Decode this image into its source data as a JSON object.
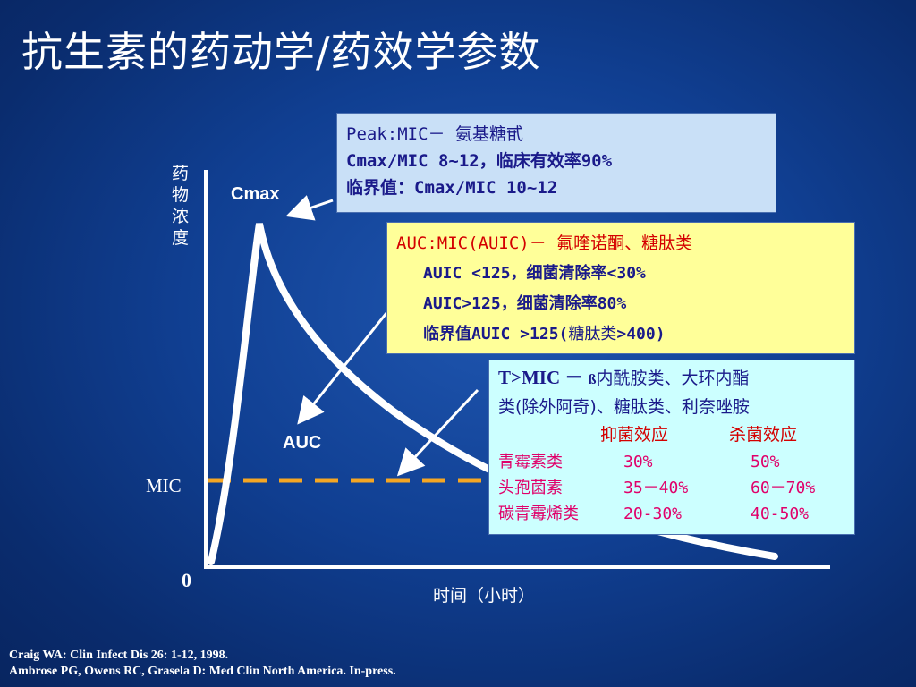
{
  "title": "抗生素的药动学/药效学参数",
  "chart": {
    "y_axis_label": "药物浓度",
    "x_axis_label": "时间（小时）",
    "origin_label": "0",
    "cmax_label": "Cmax",
    "auc_label": "AUC",
    "mic_label": "MIC",
    "colors": {
      "curve": "#ffffff",
      "axis": "#ffffff",
      "mic_line": "#f5a623"
    }
  },
  "peak_box": {
    "line1": "Peak:MIC－ 氨基糖甙",
    "line2": "Cmax/MIC 8~12，临床有效率90%",
    "line3": "临界值：Cmax/MIC 10~12"
  },
  "auc_box": {
    "line1": "AUC:MIC(AUIC)－ 氟喹诺酮、糖肽类",
    "line2": "AUIC <125，细菌清除率<30%",
    "line3": "AUIC>125，细菌清除率80%",
    "line4_prefix": "临界值AUIC >125(",
    "line4_mid": "糖肽类",
    "line4_suffix": ">400)"
  },
  "tmic_box": {
    "line1_prefix": "T>MIC － ",
    "line1_beta": "ß",
    "line1_text": "内酰胺类、大环内酯",
    "line2": "类(除外阿奇)、糖肽类、利奈唑胺",
    "header_col2": "抑菌效应",
    "header_col3": "杀菌效应",
    "rows": [
      {
        "drug": "青霉素类",
        "bacteriostatic": "30%",
        "bactericidal": "50%"
      },
      {
        "drug": "头孢菌素",
        "bacteriostatic": "35－40%",
        "bactericidal": "60－70%"
      },
      {
        "drug": "碳青霉烯类",
        "bacteriostatic": "20-30%",
        "bactericidal": "40-50%"
      }
    ]
  },
  "citations": {
    "line1": "Craig WA: Clin Infect Dis 26: 1-12, 1998.",
    "line2": "Ambrose PG, Owens RC, Grasela D: Med Clin North America. In-press."
  }
}
